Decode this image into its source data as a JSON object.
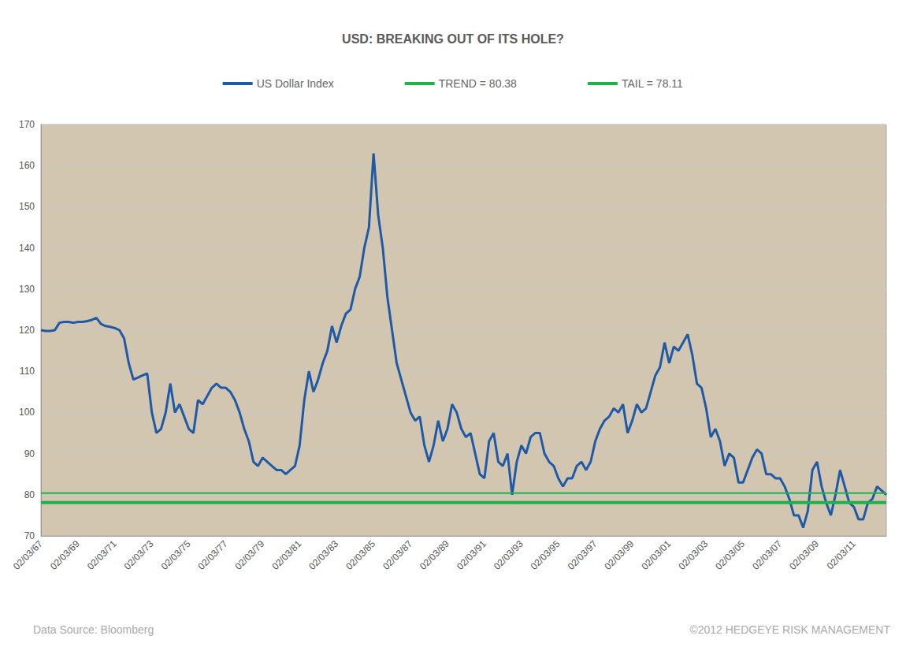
{
  "chart_data": {
    "type": "line",
    "title": "USD: BREAKING OUT OF ITS HOLE?",
    "categories": [
      "02/03/67",
      null,
      null,
      null,
      null,
      null,
      null,
      null,
      "02/03/69",
      null,
      null,
      null,
      null,
      null,
      null,
      null,
      "02/03/71",
      null,
      null,
      null,
      null,
      null,
      null,
      null,
      "02/03/73",
      null,
      null,
      null,
      null,
      null,
      null,
      null,
      "02/03/75",
      null,
      null,
      null,
      null,
      null,
      null,
      null,
      "02/03/77",
      null,
      null,
      null,
      null,
      null,
      null,
      null,
      "02/03/79",
      null,
      null,
      null,
      null,
      null,
      null,
      null,
      "02/03/81",
      null,
      null,
      null,
      null,
      null,
      null,
      null,
      "02/03/83",
      null,
      null,
      null,
      null,
      null,
      null,
      null,
      "02/03/85",
      null,
      null,
      null,
      null,
      null,
      null,
      null,
      "02/03/87",
      null,
      null,
      null,
      null,
      null,
      null,
      null,
      "02/03/89",
      null,
      null,
      null,
      null,
      null,
      null,
      null,
      "02/03/91",
      null,
      null,
      null,
      null,
      null,
      null,
      null,
      "02/03/93",
      null,
      null,
      null,
      null,
      null,
      null,
      null,
      "02/03/95",
      null,
      null,
      null,
      null,
      null,
      null,
      null,
      "02/03/97",
      null,
      null,
      null,
      null,
      null,
      null,
      null,
      "02/03/99",
      null,
      null,
      null,
      null,
      null,
      null,
      null,
      "02/03/01",
      null,
      null,
      null,
      null,
      null,
      null,
      null,
      "02/03/03",
      null,
      null,
      null,
      null,
      null,
      null,
      null,
      "02/03/05",
      null,
      null,
      null,
      null,
      null,
      null,
      null,
      "02/03/07",
      null,
      null,
      null,
      null,
      null,
      null,
      null,
      "02/03/09",
      null,
      null,
      null,
      null,
      null,
      null,
      null,
      "02/03/11",
      null,
      null,
      null,
      null,
      null,
      null,
      null
    ],
    "series": [
      {
        "name": "US Dollar Index",
        "color": "#1f5aa6",
        "values": [
          120,
          119.8,
          119.8,
          120,
          121.8,
          122,
          122,
          121.8,
          122,
          122,
          122.2,
          122.5,
          123,
          121.5,
          121,
          120.8,
          120.5,
          120,
          118,
          112,
          108,
          108.5,
          109,
          109.5,
          100,
          95,
          96,
          100,
          107,
          100,
          102,
          99,
          96,
          95,
          103,
          102,
          104,
          106,
          107,
          106,
          106,
          105,
          103,
          100,
          96,
          93,
          88,
          87,
          89,
          88,
          87,
          86,
          86,
          85,
          86,
          87,
          92,
          103,
          110,
          105,
          108,
          112,
          115,
          121,
          117,
          121,
          124,
          125,
          130,
          133,
          140,
          145,
          163,
          148,
          140,
          128,
          120,
          112,
          108,
          104,
          100,
          98,
          99,
          92,
          88,
          92,
          98,
          93,
          96,
          102,
          100,
          96,
          94,
          95,
          90,
          85,
          84,
          93,
          95,
          88,
          87,
          90,
          80,
          88,
          92,
          90,
          94,
          95,
          95,
          90,
          88,
          87,
          84,
          82,
          84,
          84,
          87,
          88,
          86,
          88,
          93,
          96,
          98,
          99,
          101,
          100,
          102,
          95,
          98,
          102,
          100,
          101,
          105,
          109,
          111,
          117,
          112,
          116,
          115,
          117,
          119,
          114,
          107,
          106,
          101,
          94,
          96,
          93,
          87,
          90,
          89,
          83,
          83,
          86,
          89,
          91,
          90,
          85,
          85,
          84,
          84,
          82,
          79,
          75,
          75,
          72,
          76,
          86,
          88,
          82,
          78,
          75,
          80,
          86,
          82,
          78,
          77,
          74,
          74,
          78,
          79,
          82,
          81,
          80
        ]
      }
    ],
    "hlines": [
      {
        "name": "TREND = 80.38",
        "value": 80.38,
        "color": "#1fb24a"
      },
      {
        "name": "TAIL = 78.11",
        "value": 78.11,
        "color": "#1fb24a"
      }
    ],
    "ylim": [
      70,
      170
    ],
    "yticks": [
      70,
      80,
      90,
      100,
      110,
      120,
      130,
      140,
      150,
      160,
      170
    ],
    "grid": true,
    "legend": "top",
    "source": "Data Source: Bloomberg",
    "credit": "©2012 HEDGEYE RISK MANAGEMENT"
  }
}
